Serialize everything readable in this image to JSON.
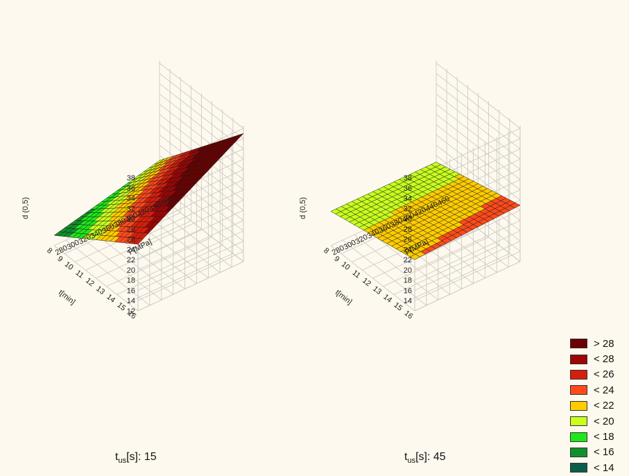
{
  "chart_data": [
    {
      "type": "surface",
      "z_label": "d (0,5)",
      "x_label": "P[MPa]",
      "y_label": "t[min]",
      "z_ticks": [
        "12",
        "14",
        "16",
        "18",
        "20",
        "22",
        "24",
        "26",
        "28",
        "30",
        "32",
        "34",
        "36",
        "38"
      ],
      "p_ticks": [
        "280",
        "300",
        "320",
        "340",
        "360",
        "380",
        "400",
        "420",
        "440",
        "460"
      ],
      "t_ticks": [
        "8",
        "9",
        "10",
        "11",
        "12",
        "13",
        "14",
        "15",
        "16"
      ],
      "zlim": [
        12,
        38
      ],
      "p_range": [
        280,
        460
      ],
      "t_range": [
        8,
        16
      ],
      "surface_corners": {
        "p280_t16": 25,
        "p460_t16": 37,
        "p280_t8": 14,
        "p460_t8": 19
      },
      "caption": {
        "prefix": "t",
        "sub": "us",
        "suffix": "[s]: 15"
      }
    },
    {
      "type": "surface",
      "z_label": "d (0,5)",
      "x_label": "P[MPa]",
      "y_label": "t[min]",
      "z_ticks": [
        "14",
        "16",
        "18",
        "20",
        "22",
        "24",
        "26",
        "28",
        "30",
        "32",
        "34",
        "36",
        "38"
      ],
      "p_ticks": [
        "280",
        "300",
        "320",
        "340",
        "360",
        "380",
        "400",
        "420",
        "440",
        "460"
      ],
      "t_ticks": [
        "8",
        "9",
        "10",
        "11",
        "12",
        "13",
        "14",
        "15",
        "16"
      ],
      "zlim": [
        14,
        38
      ],
      "p_range": [
        280,
        460
      ],
      "t_range": [
        8,
        16
      ],
      "surface_corners": {
        "p280_t16": 22,
        "p460_t16": 23,
        "p280_t8": 18.7,
        "p460_t8": 18.7
      },
      "caption": {
        "prefix": "t",
        "sub": "us",
        "suffix": "[s]: 45"
      }
    }
  ],
  "legend": [
    {
      "label": "> 28",
      "color": "#6b0000"
    },
    {
      "label": "< 28",
      "color": "#9e0505"
    },
    {
      "label": "< 26",
      "color": "#d71e0c"
    },
    {
      "label": "< 24",
      "color": "#ff4a1c"
    },
    {
      "label": "< 22",
      "color": "#ffcc00"
    },
    {
      "label": "< 20",
      "color": "#c8ff1e"
    },
    {
      "label": "< 18",
      "color": "#1ee81a"
    },
    {
      "label": "< 16",
      "color": "#12912a"
    },
    {
      "label": "< 14",
      "color": "#0b5e4a"
    }
  ],
  "legend_thresholds": [
    14,
    16,
    18,
    20,
    22,
    24,
    26,
    28
  ]
}
